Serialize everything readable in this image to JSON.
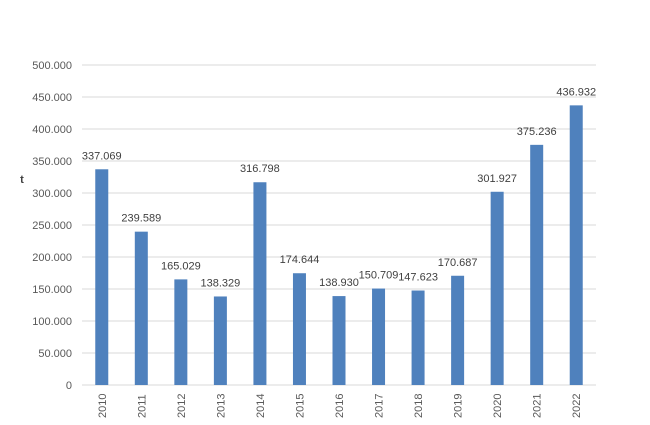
{
  "chart_data": {
    "type": "bar",
    "title": "",
    "xlabel": "",
    "ylabel": "t",
    "categories": [
      "2010",
      "2011",
      "2012",
      "2013",
      "2014",
      "2015",
      "2016",
      "2017",
      "2018",
      "2019",
      "2020",
      "2021",
      "2022"
    ],
    "values": [
      337069,
      239589,
      165029,
      138329,
      316798,
      174644,
      138930,
      150709,
      147623,
      170687,
      301927,
      375236,
      436932
    ],
    "data_labels": [
      "337.069",
      "239.589",
      "165.029",
      "138.329",
      "316.798",
      "174.644",
      "138.930",
      "150.709",
      "147.623",
      "170.687",
      "301.927",
      "375.236",
      "436.932"
    ],
    "ylim": [
      0,
      500000
    ],
    "yticks": [
      0,
      50000,
      100000,
      150000,
      200000,
      250000,
      300000,
      350000,
      400000,
      450000,
      500000
    ],
    "ytick_labels": [
      "0",
      "50.000",
      "100.000",
      "150.000",
      "200.000",
      "250.000",
      "300.000",
      "350.000",
      "400.000",
      "450.000",
      "500.000"
    ],
    "grid": true,
    "legend": "none",
    "bar_color": "#4f81bd",
    "grid_color": "#d9d9d9"
  }
}
